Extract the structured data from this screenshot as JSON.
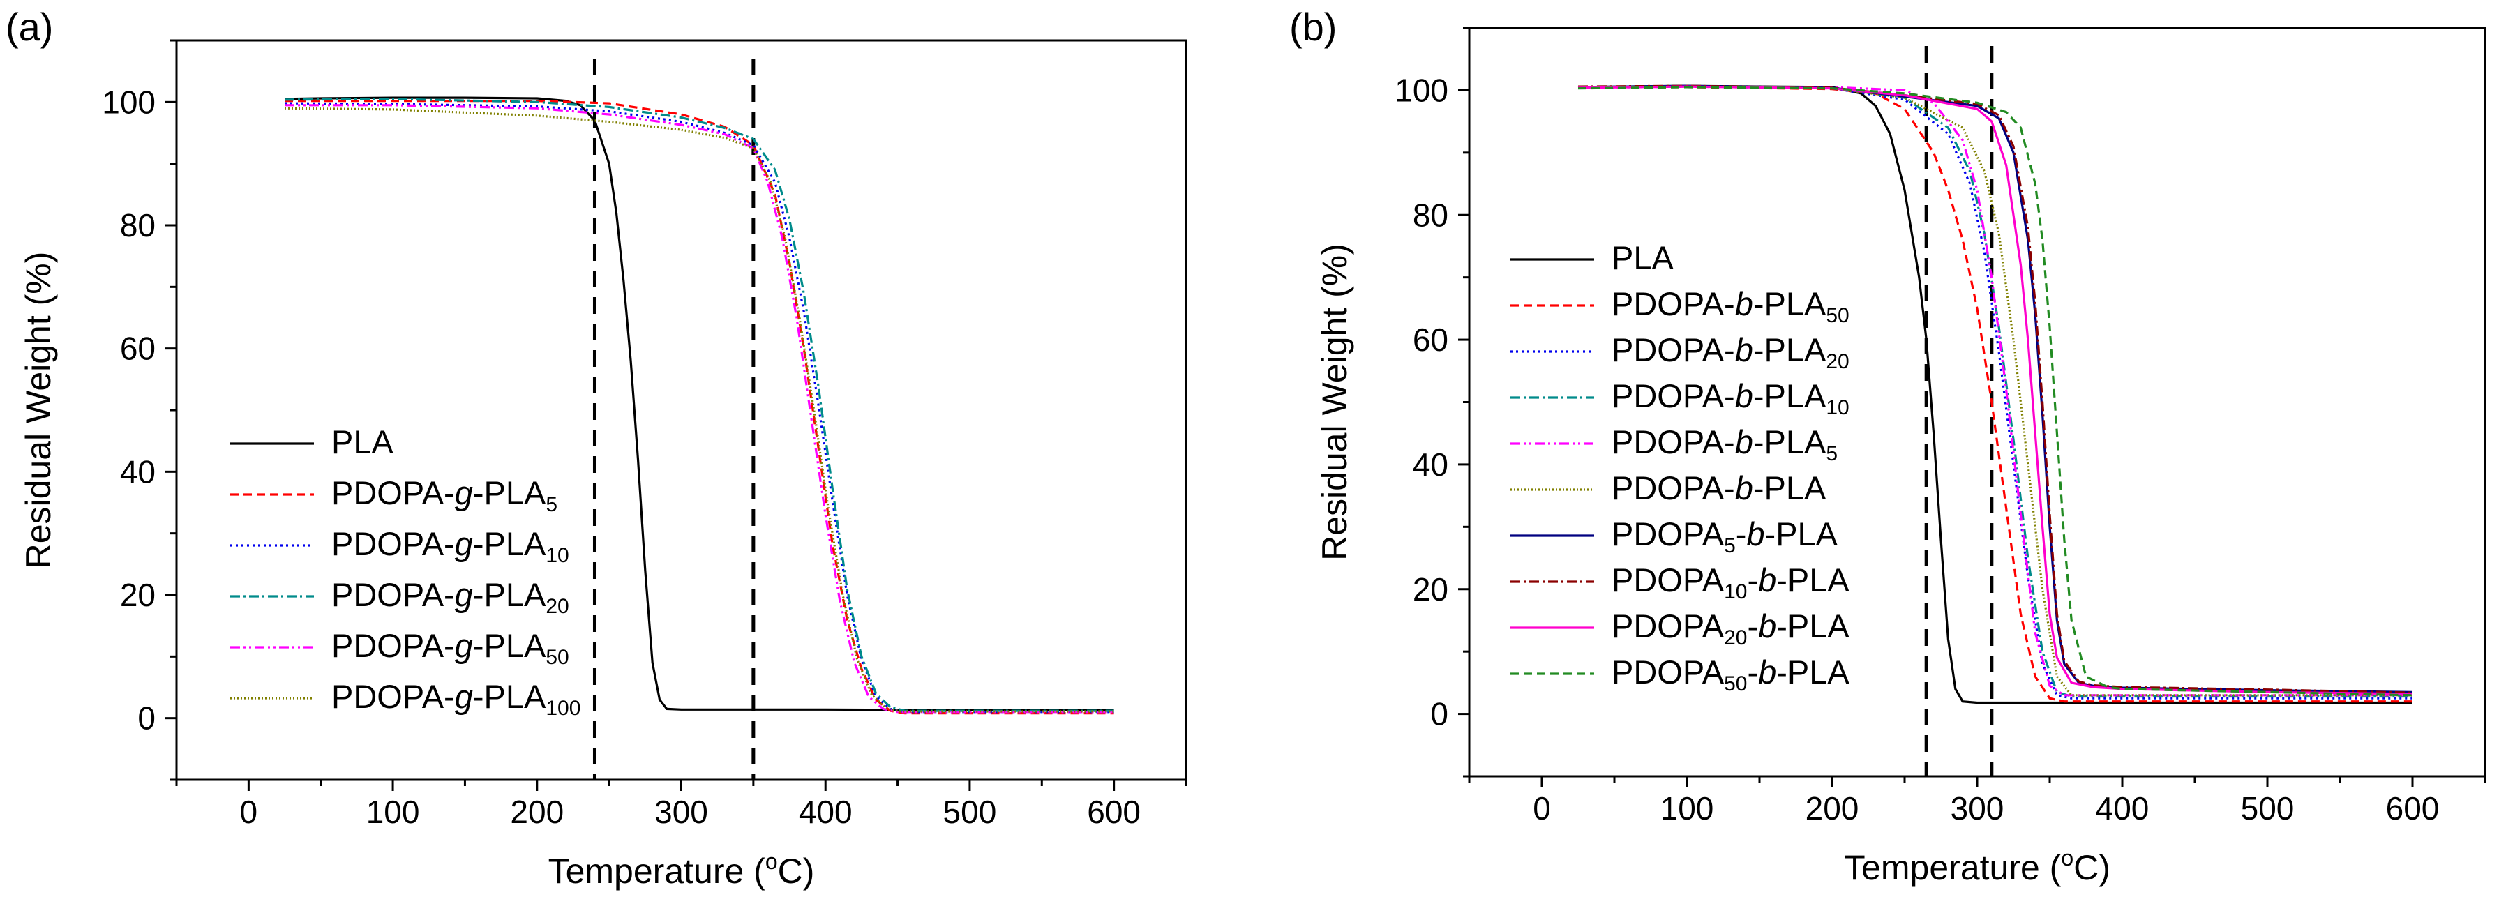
{
  "chart_data": [
    {
      "type": "line",
      "panel_label": "(a)",
      "xlabel": {
        "main": "Temperature (",
        "sup": "o",
        "unit": "C)"
      },
      "ylabel": "Residual Weight (%)",
      "xlim": [
        -50,
        650
      ],
      "ylim": [
        -10,
        110
      ],
      "xticks": [
        0,
        100,
        200,
        300,
        400,
        500,
        600
      ],
      "yticks": [
        0,
        20,
        40,
        60,
        80,
        100
      ],
      "grid": false,
      "legend_position": "lower-left",
      "reference_lines_x": [
        240,
        350
      ],
      "series": [
        {
          "name": "PLA",
          "label": [
            {
              "t": "PLA"
            }
          ],
          "color": "#000000",
          "dash": "",
          "x": [
            25,
            50,
            100,
            150,
            200,
            220,
            230,
            240,
            250,
            255,
            260,
            265,
            270,
            275,
            280,
            285,
            290,
            300,
            400,
            500,
            600
          ],
          "y": [
            100.5,
            100.6,
            100.7,
            100.7,
            100.6,
            100.2,
            99.5,
            97.0,
            90.0,
            82.0,
            71.0,
            58.0,
            42.0,
            24.0,
            9.0,
            3.0,
            1.5,
            1.4,
            1.4,
            1.3,
            1.3
          ]
        },
        {
          "name": "PDOPA-g-PLA5",
          "label": [
            {
              "t": "PDOPA-"
            },
            {
              "t": "g",
              "i": true
            },
            {
              "t": "-PLA"
            },
            {
              "t": "5",
              "sub": true
            }
          ],
          "color": "#ff0000",
          "dash": "12 7",
          "x": [
            25,
            100,
            200,
            250,
            300,
            330,
            350,
            365,
            375,
            385,
            395,
            405,
            415,
            425,
            435,
            445,
            455,
            500,
            600
          ],
          "y": [
            100.2,
            100.2,
            100.2,
            99.8,
            98.0,
            96.0,
            93.0,
            85.0,
            74.0,
            60.0,
            44.0,
            28.0,
            16.0,
            8.0,
            3.0,
            1.2,
            0.8,
            0.8,
            0.8
          ]
        },
        {
          "name": "PDOPA-g-PLA10",
          "label": [
            {
              "t": "PDOPA-"
            },
            {
              "t": "g",
              "i": true
            },
            {
              "t": "-PLA"
            },
            {
              "t": "10",
              "sub": true
            }
          ],
          "color": "#0000ee",
          "dash": "3 5",
          "x": [
            25,
            100,
            200,
            250,
            300,
            330,
            350,
            365,
            375,
            385,
            395,
            405,
            415,
            425,
            435,
            445,
            455,
            500,
            600
          ],
          "y": [
            99.8,
            99.7,
            99.3,
            98.5,
            96.8,
            95.0,
            93.0,
            87.0,
            78.0,
            66.0,
            51.0,
            35.0,
            20.0,
            9.5,
            3.5,
            1.5,
            1.0,
            1.0,
            1.0
          ]
        },
        {
          "name": "PDOPA-g-PLA20",
          "label": [
            {
              "t": "PDOPA-"
            },
            {
              "t": "g",
              "i": true
            },
            {
              "t": "-PLA"
            },
            {
              "t": "20",
              "sub": true
            }
          ],
          "color": "#008b8b",
          "dash": "14 5 3 5",
          "x": [
            25,
            100,
            200,
            250,
            300,
            330,
            350,
            365,
            375,
            385,
            395,
            405,
            415,
            425,
            435,
            445,
            455,
            500,
            600
          ],
          "y": [
            100.4,
            100.5,
            100.0,
            99.2,
            97.5,
            95.8,
            94.0,
            89.0,
            81.0,
            69.0,
            54.0,
            37.0,
            21.0,
            10.0,
            4.0,
            1.8,
            1.2,
            1.2,
            1.2
          ]
        },
        {
          "name": "PDOPA-g-PLA50",
          "label": [
            {
              "t": "PDOPA-"
            },
            {
              "t": "g",
              "i": true
            },
            {
              "t": "-PLA"
            },
            {
              "t": "50",
              "sub": true
            }
          ],
          "color": "#ff00ff",
          "dash": "14 5 3 5 3 5",
          "x": [
            25,
            100,
            200,
            250,
            300,
            330,
            350,
            360,
            370,
            380,
            390,
            400,
            410,
            420,
            430,
            440,
            450,
            500,
            600
          ],
          "y": [
            99.5,
            99.5,
            99.0,
            98.0,
            96.3,
            94.8,
            92.5,
            87.0,
            78.0,
            65.0,
            49.0,
            33.0,
            19.0,
            9.0,
            3.5,
            1.5,
            1.0,
            1.0,
            1.0
          ]
        },
        {
          "name": "PDOPA-g-PLA100",
          "label": [
            {
              "t": "PDOPA-"
            },
            {
              "t": "g",
              "i": true
            },
            {
              "t": "-PLA"
            },
            {
              "t": "100",
              "sub": true
            }
          ],
          "color": "#808000",
          "dash": "2 3",
          "x": [
            25,
            100,
            200,
            250,
            300,
            330,
            350,
            362,
            372,
            382,
            392,
            402,
            412,
            422,
            432,
            442,
            452,
            500,
            600
          ],
          "y": [
            99.0,
            98.8,
            97.8,
            96.8,
            95.5,
            94.2,
            92.5,
            87.0,
            78.0,
            65.0,
            50.0,
            34.0,
            20.0,
            9.5,
            3.8,
            1.6,
            1.1,
            1.1,
            1.1
          ]
        }
      ]
    },
    {
      "type": "line",
      "panel_label": "(b)",
      "xlabel": {
        "main": "Temperature (",
        "sup": "o",
        "unit": "C)"
      },
      "ylabel": "Residual Weight (%)",
      "xlim": [
        -50,
        650
      ],
      "ylim": [
        -10,
        110
      ],
      "xticks": [
        0,
        100,
        200,
        300,
        400,
        500,
        600
      ],
      "yticks": [
        0,
        20,
        40,
        60,
        80,
        100
      ],
      "grid": false,
      "legend_position": "center-left",
      "reference_lines_x": [
        265,
        310
      ],
      "series": [
        {
          "name": "PLA",
          "label": [
            {
              "t": "PLA"
            }
          ],
          "color": "#000000",
          "dash": "",
          "x": [
            25,
            100,
            200,
            220,
            230,
            240,
            250,
            260,
            265,
            270,
            275,
            280,
            285,
            290,
            300,
            400,
            500,
            600
          ],
          "y": [
            100.5,
            100.7,
            100.5,
            99.5,
            97.5,
            93.0,
            84.0,
            70.0,
            60.0,
            45.0,
            28.0,
            12.0,
            4.0,
            2.0,
            1.8,
            1.8,
            1.8,
            1.8
          ]
        },
        {
          "name": "PDOPA-b-PLA50",
          "label": [
            {
              "t": "PDOPA-"
            },
            {
              "t": "b",
              "i": true
            },
            {
              "t": "-PLA"
            },
            {
              "t": "50",
              "sub": true
            }
          ],
          "color": "#ff0000",
          "dash": "12 7",
          "x": [
            25,
            100,
            200,
            230,
            250,
            270,
            280,
            290,
            300,
            310,
            320,
            330,
            340,
            350,
            360,
            400,
            500,
            600
          ],
          "y": [
            100.4,
            100.5,
            100.2,
            99.5,
            97.0,
            90.0,
            84.0,
            76.0,
            65.0,
            50.0,
            33.0,
            16.0,
            6.0,
            2.5,
            2.0,
            2.0,
            2.0,
            2.0
          ]
        },
        {
          "name": "PDOPA-b-PLA20",
          "label": [
            {
              "t": "PDOPA-"
            },
            {
              "t": "b",
              "i": true
            },
            {
              "t": "-PLA"
            },
            {
              "t": "20",
              "sub": true
            }
          ],
          "color": "#0000ee",
          "dash": "3 5",
          "x": [
            25,
            100,
            200,
            250,
            280,
            295,
            305,
            315,
            325,
            335,
            345,
            355,
            365,
            400,
            500,
            600
          ],
          "y": [
            100.4,
            100.6,
            100.3,
            98.5,
            93.0,
            85.0,
            74.0,
            58.0,
            40.0,
            22.0,
            8.0,
            3.0,
            2.5,
            2.5,
            2.5,
            2.5
          ]
        },
        {
          "name": "PDOPA-b-PLA10",
          "label": [
            {
              "t": "PDOPA-"
            },
            {
              "t": "b",
              "i": true
            },
            {
              "t": "-PLA"
            },
            {
              "t": "10",
              "sub": true
            }
          ],
          "color": "#008b8b",
          "dash": "14 5 3 5",
          "x": [
            25,
            100,
            200,
            250,
            280,
            295,
            305,
            315,
            325,
            335,
            345,
            355,
            365,
            400,
            500,
            600
          ],
          "y": [
            100.5,
            100.7,
            100.4,
            98.8,
            94.0,
            87.0,
            77.0,
            62.0,
            44.0,
            25.0,
            10.0,
            3.5,
            2.8,
            2.8,
            2.8,
            2.8
          ]
        },
        {
          "name": "PDOPA-b-PLA5",
          "label": [
            {
              "t": "PDOPA-"
            },
            {
              "t": "b",
              "i": true
            },
            {
              "t": "-PLA"
            },
            {
              "t": "5",
              "sub": true
            }
          ],
          "color": "#ff00ff",
          "dash": "14 5 3 5 3 5",
          "x": [
            25,
            100,
            200,
            250,
            270,
            290,
            300,
            310,
            320,
            330,
            340,
            350,
            360,
            400,
            500,
            600
          ],
          "y": [
            100.4,
            100.6,
            100.5,
            100.0,
            98.0,
            92.0,
            84.0,
            70.0,
            52.0,
            32.0,
            13.0,
            4.5,
            3.0,
            3.0,
            3.0,
            3.0
          ]
        },
        {
          "name": "PDOPA-b-PLA",
          "label": [
            {
              "t": "PDOPA-"
            },
            {
              "t": "b",
              "i": true
            },
            {
              "t": "-PLA"
            }
          ],
          "color": "#808000",
          "dash": "2 3",
          "x": [
            25,
            100,
            200,
            250,
            290,
            305,
            315,
            325,
            335,
            345,
            355,
            365,
            400,
            500,
            600
          ],
          "y": [
            100.5,
            100.7,
            100.3,
            98.8,
            94.0,
            87.0,
            77.0,
            60.0,
            40.0,
            20.0,
            6.0,
            3.0,
            3.0,
            3.0,
            3.0
          ]
        },
        {
          "name": "PDOPA5-b-PLA",
          "label": [
            {
              "t": "PDOPA"
            },
            {
              "t": "5",
              "sub": true
            },
            {
              "t": "-"
            },
            {
              "t": "b",
              "i": true
            },
            {
              "t": "-PLA"
            }
          ],
          "color": "#000080",
          "dash": "",
          "x": [
            25,
            100,
            200,
            250,
            300,
            315,
            325,
            335,
            340,
            345,
            350,
            355,
            360,
            370,
            380,
            400,
            500,
            600
          ],
          "y": [
            100.5,
            100.7,
            100.4,
            99.0,
            97.5,
            95.5,
            90.0,
            76.0,
            64.0,
            48.0,
            30.0,
            15.0,
            8.0,
            5.0,
            4.5,
            4.2,
            3.8,
            3.5
          ]
        },
        {
          "name": "PDOPA10-b-PLA",
          "label": [
            {
              "t": "PDOPA"
            },
            {
              "t": "10",
              "sub": true
            },
            {
              "t": "-"
            },
            {
              "t": "b",
              "i": true
            },
            {
              "t": "-PLA"
            }
          ],
          "color": "#8b0000",
          "dash": "14 5 3 5",
          "x": [
            25,
            100,
            200,
            250,
            300,
            315,
            325,
            335,
            340,
            345,
            350,
            355,
            360,
            370,
            380,
            400,
            500,
            600
          ],
          "y": [
            100.6,
            100.7,
            100.4,
            99.2,
            97.8,
            96.0,
            91.0,
            78.0,
            66.0,
            50.0,
            32.0,
            16.0,
            8.5,
            5.2,
            4.6,
            4.3,
            3.9,
            3.4
          ]
        },
        {
          "name": "PDOPA20-b-PLA",
          "label": [
            {
              "t": "PDOPA"
            },
            {
              "t": "20",
              "sub": true
            },
            {
              "t": "-"
            },
            {
              "t": "b",
              "i": true
            },
            {
              "t": "-PLA"
            }
          ],
          "color": "#ff00cc",
          "dash": "",
          "x": [
            25,
            100,
            200,
            250,
            300,
            310,
            320,
            330,
            335,
            340,
            345,
            350,
            355,
            365,
            380,
            400,
            500,
            600
          ],
          "y": [
            100.4,
            100.6,
            100.3,
            99.2,
            97.0,
            95.0,
            88.0,
            72.0,
            60.0,
            45.0,
            30.0,
            16.0,
            9.0,
            5.0,
            4.3,
            4.0,
            3.5,
            3.2
          ]
        },
        {
          "name": "PDOPA50-b-PLA",
          "label": [
            {
              "t": "PDOPA"
            },
            {
              "t": "50",
              "sub": true
            },
            {
              "t": "-"
            },
            {
              "t": "b",
              "i": true
            },
            {
              "t": "-PLA"
            }
          ],
          "color": "#228b22",
          "dash": "12 7",
          "x": [
            25,
            100,
            200,
            250,
            300,
            320,
            330,
            340,
            345,
            350,
            355,
            360,
            365,
            375,
            390,
            400,
            500,
            600
          ],
          "y": [
            100.3,
            100.5,
            100.3,
            99.5,
            98.0,
            96.5,
            94.0,
            85.0,
            76.0,
            62.0,
            45.0,
            28.0,
            15.0,
            6.0,
            4.3,
            4.0,
            3.5,
            3.0
          ]
        }
      ]
    }
  ]
}
